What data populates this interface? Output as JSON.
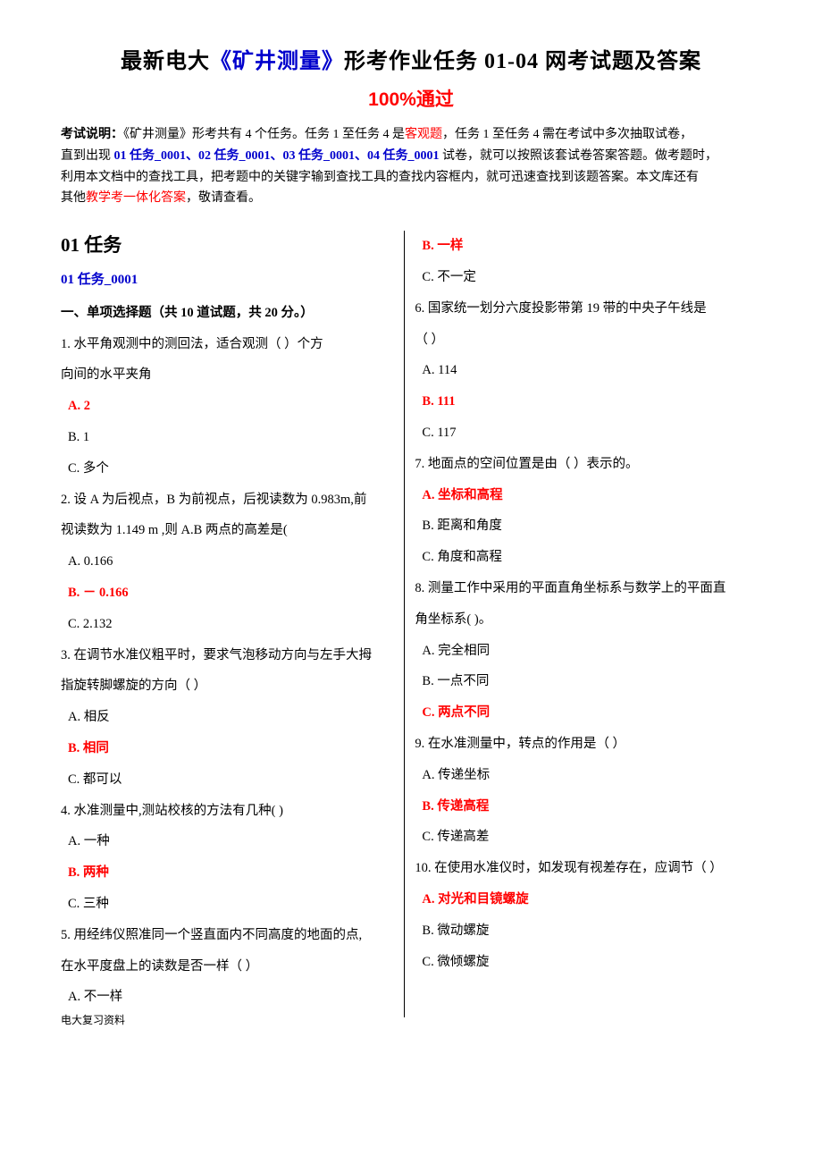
{
  "title_pre": "最新电大",
  "title_blue": "《矿井测量》",
  "title_post": "形考作业任务 01-04 网考试题及答案",
  "subtitle": "100%通过",
  "intro": {
    "l1_a": "考试说明：",
    "l1_b": "《矿井测量》形考共有 4 个任务。任务 1 至任务 4 是",
    "l1_c": "客观题",
    "l1_d": "，任务 1 至任务 4 需在考试中多次抽取试卷，",
    "l2_a": "直到出现 ",
    "l2_b": "01 任务_0001、02 任务_0001、03 任务_0001、04 任务_0001",
    "l2_c": " 试卷，就可以按照该套试卷答案答题。做考题时，",
    "l3": "利用本文档中的查找工具，把考题中的关键字输到查找工具的查找内容框内，就可迅速查找到该题答案。本文库还有",
    "l4_a": "其他",
    "l4_b": "教学考一体化答案",
    "l4_c": "，敬请查看。"
  },
  "left": {
    "task_header": "01 任务",
    "task_sub": "01 任务_0001",
    "section": "一、单项选择题（共 10 道试题，共 20 分。）",
    "q1": "1.   水平角观测中的测回法，适合观测（        ）个方",
    "q1b": "向间的水平夹角",
    "q1_a": "A. 2",
    "q1_b": "B. 1",
    "q1_c": "C. 多个",
    "q2": "2.   设 A 为后视点，B 为前视点，后视读数为 0.983m,前",
    "q2b": "视读数为 1.149 m ,则 A.B 两点的高差是(",
    "q2_a": "A. 0.166",
    "q2_b": "B. － 0.166",
    "q2_c": "C. 2.132",
    "q3": "3.   在调节水准仪粗平时，要求气泡移动方向与左手大拇",
    "q3b": "指旋转脚螺旋的方向（       ）",
    "q3_a": "A. 相反",
    "q3_b": "B. 相同",
    "q3_c": "C. 都可以",
    "q4": "4.   水准测量中,测站校核的方法有几种(                )",
    "q4_a": "A. 一种",
    "q4_b": "B. 两种",
    "q4_c": "C. 三种",
    "q5": "5.   用经纬仪照准同一个竖直面内不同高度的地面的点,",
    "q5b": "在水平度盘上的读数是否一样（        ）",
    "q5_a": "A. 不一样"
  },
  "right": {
    "q5_b": "B. 一样",
    "q5_c": "C. 不一定",
    "q6": "6.   国家统一划分六度投影带第 19 带的中央子午线是",
    "q6b": "（          ）",
    "q6_a": "A. 114",
    "q6_b": "B. 111",
    "q6_c": "C. 117",
    "q7": "7.   地面点的空间位置是由（        ）表示的。",
    "q7_a": "A. 坐标和高程",
    "q7_b": "B. 距离和角度",
    "q7_c": "C. 角度和高程",
    "q8": "8.   测量工作中采用的平面直角坐标系与数学上的平面直",
    "q8b": "角坐标系(       )。",
    "q8_a": "A. 完全相同",
    "q8_b": "B. 一点不同",
    "q8_c": "C. 两点不同",
    "q9": "9.   在水准测量中，转点的作用是（                  ）",
    "q9_a": "A. 传递坐标",
    "q9_b": "B. 传递高程",
    "q9_c": "C. 传递高差",
    "q10": "10.   在使用水准仪时，如发现有视差存在，应调节（    ）",
    "q10_a": "A. 对光和目镜螺旋",
    "q10_b": "B. 微动螺旋",
    "q10_c": "C. 微倾螺旋"
  },
  "footer": "电大复习资料"
}
